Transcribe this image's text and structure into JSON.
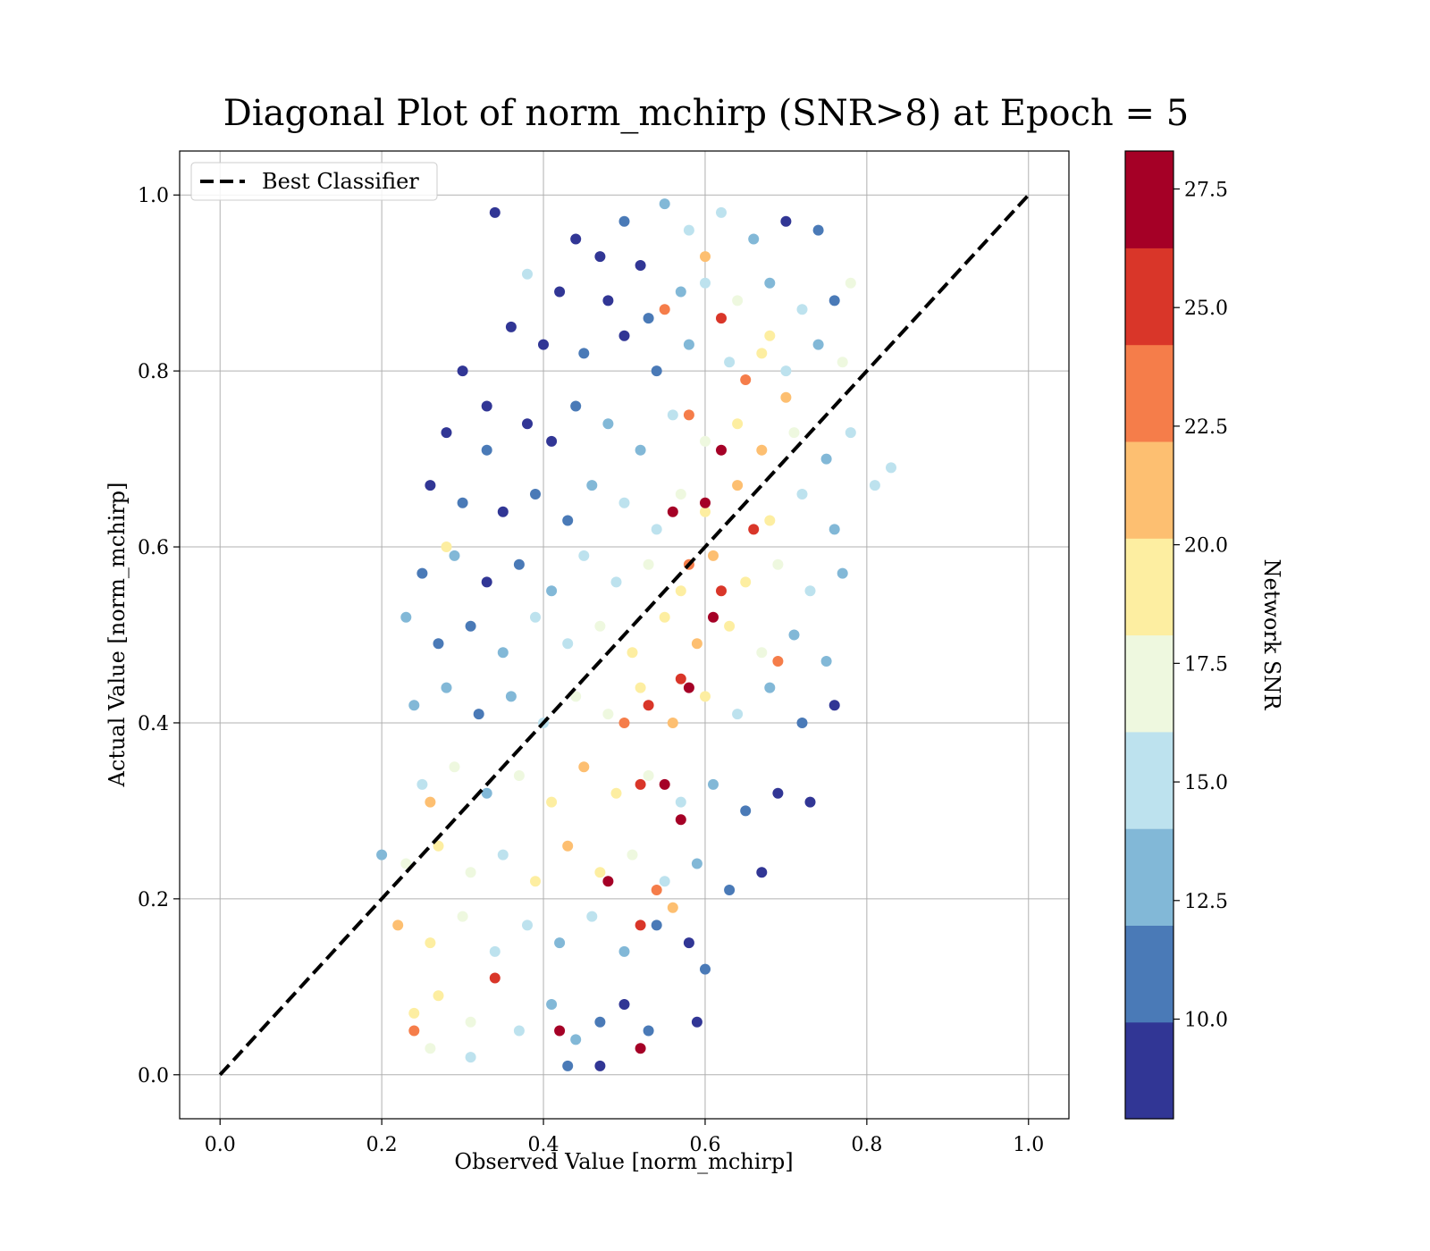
{
  "chart_data": {
    "type": "scatter",
    "title": "Diagonal Plot of norm_mchirp (SNR>8) at Epoch = 5",
    "xlabel": "Observed Value [norm_mchirp]",
    "ylabel": "Actual Value [norm_mchirp]",
    "xlim": [
      -0.05,
      1.05
    ],
    "ylim": [
      -0.05,
      1.05
    ],
    "xticks": [
      "0.0",
      "0.2",
      "0.4",
      "0.6",
      "0.8",
      "1.0"
    ],
    "yticks": [
      "0.0",
      "0.2",
      "0.4",
      "0.6",
      "0.8",
      "1.0"
    ],
    "grid": true,
    "legend": {
      "placement": "upper-left",
      "entries": [
        "Best Classifier"
      ]
    },
    "reference_line": {
      "name": "Best Classifier",
      "style": "dashed",
      "color": "#000000",
      "x": [
        0.0,
        1.0
      ],
      "y": [
        0.0,
        1.0
      ]
    },
    "colorbar": {
      "label": "Network SNR",
      "colormap": "RdYlBu_r",
      "range": [
        7.9,
        28.3
      ],
      "ticks": [
        "10.0",
        "12.5",
        "15.0",
        "17.5",
        "20.0",
        "22.5",
        "25.0",
        "27.5"
      ],
      "bins": [
        {
          "from": 7.9,
          "to": 9.94,
          "color": "#313695"
        },
        {
          "from": 9.94,
          "to": 11.98,
          "color": "#4a7ab7"
        },
        {
          "from": 11.98,
          "to": 14.02,
          "color": "#82b8d7"
        },
        {
          "from": 14.02,
          "to": 16.06,
          "color": "#bde2ee"
        },
        {
          "from": 16.06,
          "to": 18.1,
          "color": "#eef8df"
        },
        {
          "from": 18.1,
          "to": 20.14,
          "color": "#fdeea1"
        },
        {
          "from": 20.14,
          "to": 22.18,
          "color": "#fdbf71"
        },
        {
          "from": 22.18,
          "to": 24.22,
          "color": "#f57d4a"
        },
        {
          "from": 24.22,
          "to": 26.26,
          "color": "#d93629"
        },
        {
          "from": 26.26,
          "to": 28.3,
          "color": "#a50026"
        }
      ]
    },
    "series": [
      {
        "columns": [
          "x",
          "y",
          "snr"
        ],
        "points": [
          [
            0.34,
            0.98,
            9.2
          ],
          [
            0.44,
            0.95,
            9.0
          ],
          [
            0.47,
            0.93,
            9.8
          ],
          [
            0.5,
            0.97,
            10.5
          ],
          [
            0.52,
            0.92,
            9.4
          ],
          [
            0.55,
            0.99,
            12.8
          ],
          [
            0.58,
            0.96,
            14.6
          ],
          [
            0.62,
            0.98,
            15.9
          ],
          [
            0.66,
            0.95,
            13.1
          ],
          [
            0.7,
            0.97,
            9.7
          ],
          [
            0.74,
            0.96,
            11.8
          ],
          [
            0.38,
            0.91,
            15.6
          ],
          [
            0.42,
            0.89,
            9.1
          ],
          [
            0.48,
            0.88,
            9.3
          ],
          [
            0.53,
            0.86,
            10.2
          ],
          [
            0.57,
            0.89,
            12.4
          ],
          [
            0.6,
            0.9,
            14.8
          ],
          [
            0.64,
            0.88,
            16.1
          ],
          [
            0.68,
            0.9,
            13.5
          ],
          [
            0.72,
            0.87,
            15.2
          ],
          [
            0.76,
            0.88,
            11.5
          ],
          [
            0.78,
            0.9,
            16.4
          ],
          [
            0.62,
            0.86,
            25.3
          ],
          [
            0.55,
            0.87,
            23.0
          ],
          [
            0.6,
            0.93,
            20.8
          ],
          [
            0.36,
            0.85,
            9.0
          ],
          [
            0.4,
            0.83,
            9.4
          ],
          [
            0.45,
            0.82,
            10.1
          ],
          [
            0.5,
            0.84,
            9.6
          ],
          [
            0.54,
            0.8,
            11.2
          ],
          [
            0.58,
            0.83,
            13.3
          ],
          [
            0.63,
            0.81,
            15.4
          ],
          [
            0.67,
            0.82,
            19.6
          ],
          [
            0.7,
            0.8,
            14.9
          ],
          [
            0.74,
            0.83,
            12.7
          ],
          [
            0.77,
            0.81,
            16.8
          ],
          [
            0.3,
            0.8,
            9.5
          ],
          [
            0.33,
            0.76,
            9.8
          ],
          [
            0.65,
            0.79,
            23.4
          ],
          [
            0.68,
            0.84,
            18.7
          ],
          [
            0.28,
            0.73,
            9.3
          ],
          [
            0.33,
            0.71,
            10.4
          ],
          [
            0.38,
            0.74,
            9.1
          ],
          [
            0.41,
            0.72,
            9.7
          ],
          [
            0.44,
            0.76,
            10.8
          ],
          [
            0.48,
            0.74,
            12.2
          ],
          [
            0.52,
            0.71,
            13.9
          ],
          [
            0.56,
            0.75,
            15.1
          ],
          [
            0.6,
            0.72,
            17.3
          ],
          [
            0.64,
            0.74,
            19.2
          ],
          [
            0.67,
            0.71,
            20.5
          ],
          [
            0.71,
            0.73,
            16.2
          ],
          [
            0.75,
            0.7,
            13.6
          ],
          [
            0.78,
            0.73,
            15.7
          ],
          [
            0.83,
            0.69,
            15.3
          ],
          [
            0.81,
            0.67,
            14.7
          ],
          [
            0.62,
            0.71,
            27.9
          ],
          [
            0.58,
            0.75,
            22.9
          ],
          [
            0.7,
            0.77,
            21.4
          ],
          [
            0.26,
            0.67,
            9.4
          ],
          [
            0.3,
            0.65,
            10.6
          ],
          [
            0.35,
            0.64,
            9.2
          ],
          [
            0.39,
            0.66,
            10.9
          ],
          [
            0.43,
            0.63,
            11.8
          ],
          [
            0.46,
            0.67,
            12.6
          ],
          [
            0.5,
            0.65,
            14.3
          ],
          [
            0.54,
            0.62,
            15.8
          ],
          [
            0.57,
            0.66,
            17.9
          ],
          [
            0.6,
            0.64,
            19.8
          ],
          [
            0.64,
            0.67,
            21.0
          ],
          [
            0.68,
            0.63,
            18.4
          ],
          [
            0.72,
            0.66,
            15.5
          ],
          [
            0.76,
            0.62,
            12.9
          ],
          [
            0.56,
            0.64,
            27.2
          ],
          [
            0.6,
            0.65,
            26.9
          ],
          [
            0.66,
            0.62,
            24.6
          ],
          [
            0.25,
            0.57,
            10.3
          ],
          [
            0.29,
            0.59,
            12.1
          ],
          [
            0.33,
            0.56,
            9.6
          ],
          [
            0.37,
            0.58,
            11.4
          ],
          [
            0.41,
            0.55,
            13.2
          ],
          [
            0.45,
            0.59,
            14.5
          ],
          [
            0.49,
            0.56,
            15.9
          ],
          [
            0.53,
            0.58,
            17.1
          ],
          [
            0.57,
            0.55,
            18.9
          ],
          [
            0.61,
            0.59,
            20.3
          ],
          [
            0.65,
            0.56,
            19.5
          ],
          [
            0.69,
            0.58,
            17.6
          ],
          [
            0.73,
            0.55,
            14.2
          ],
          [
            0.77,
            0.57,
            12.3
          ],
          [
            0.62,
            0.55,
            25.1
          ],
          [
            0.58,
            0.58,
            23.2
          ],
          [
            0.28,
            0.6,
            19.0
          ],
          [
            0.23,
            0.52,
            13.0
          ],
          [
            0.27,
            0.49,
            11.6
          ],
          [
            0.31,
            0.51,
            10.2
          ],
          [
            0.35,
            0.48,
            12.8
          ],
          [
            0.39,
            0.52,
            14.1
          ],
          [
            0.43,
            0.49,
            15.7
          ],
          [
            0.47,
            0.51,
            16.9
          ],
          [
            0.51,
            0.48,
            18.6
          ],
          [
            0.55,
            0.52,
            20.1
          ],
          [
            0.59,
            0.49,
            21.3
          ],
          [
            0.63,
            0.51,
            19.4
          ],
          [
            0.67,
            0.48,
            16.7
          ],
          [
            0.71,
            0.5,
            14.0
          ],
          [
            0.75,
            0.47,
            12.1
          ],
          [
            0.61,
            0.52,
            26.8
          ],
          [
            0.57,
            0.45,
            25.4
          ],
          [
            0.69,
            0.47,
            22.6
          ],
          [
            0.24,
            0.42,
            13.7
          ],
          [
            0.28,
            0.44,
            12.5
          ],
          [
            0.32,
            0.41,
            11.1
          ],
          [
            0.36,
            0.43,
            13.8
          ],
          [
            0.4,
            0.4,
            15.2
          ],
          [
            0.44,
            0.43,
            16.6
          ],
          [
            0.48,
            0.41,
            18.0
          ],
          [
            0.52,
            0.44,
            19.7
          ],
          [
            0.56,
            0.4,
            20.9
          ],
          [
            0.6,
            0.43,
            18.2
          ],
          [
            0.64,
            0.41,
            15.6
          ],
          [
            0.68,
            0.44,
            13.3
          ],
          [
            0.72,
            0.4,
            11.0
          ],
          [
            0.76,
            0.42,
            9.5
          ],
          [
            0.53,
            0.42,
            25.2
          ],
          [
            0.58,
            0.44,
            27.3
          ],
          [
            0.5,
            0.4,
            22.4
          ],
          [
            0.25,
            0.33,
            15.4
          ],
          [
            0.29,
            0.35,
            16.7
          ],
          [
            0.33,
            0.32,
            14.0
          ],
          [
            0.37,
            0.34,
            17.5
          ],
          [
            0.41,
            0.31,
            19.1
          ],
          [
            0.45,
            0.35,
            20.2
          ],
          [
            0.49,
            0.32,
            18.3
          ],
          [
            0.53,
            0.34,
            16.4
          ],
          [
            0.57,
            0.31,
            14.6
          ],
          [
            0.61,
            0.33,
            12.0
          ],
          [
            0.65,
            0.3,
            10.7
          ],
          [
            0.69,
            0.32,
            9.6
          ],
          [
            0.73,
            0.31,
            9.2
          ],
          [
            0.26,
            0.31,
            21.8
          ],
          [
            0.55,
            0.33,
            26.7
          ],
          [
            0.57,
            0.29,
            27.4
          ],
          [
            0.52,
            0.33,
            25.0
          ],
          [
            0.23,
            0.24,
            16.3
          ],
          [
            0.27,
            0.26,
            19.4
          ],
          [
            0.31,
            0.23,
            17.0
          ],
          [
            0.35,
            0.25,
            15.1
          ],
          [
            0.39,
            0.22,
            18.8
          ],
          [
            0.43,
            0.26,
            20.4
          ],
          [
            0.47,
            0.23,
            19.0
          ],
          [
            0.51,
            0.25,
            16.6
          ],
          [
            0.55,
            0.22,
            14.3
          ],
          [
            0.59,
            0.24,
            12.3
          ],
          [
            0.63,
            0.21,
            10.5
          ],
          [
            0.67,
            0.23,
            9.4
          ],
          [
            0.2,
            0.25,
            12.6
          ],
          [
            0.48,
            0.22,
            27.6
          ],
          [
            0.54,
            0.21,
            23.8
          ],
          [
            0.22,
            0.17,
            21.2
          ],
          [
            0.26,
            0.15,
            19.3
          ],
          [
            0.3,
            0.18,
            17.7
          ],
          [
            0.34,
            0.14,
            16.0
          ],
          [
            0.38,
            0.17,
            14.4
          ],
          [
            0.42,
            0.15,
            13.0
          ],
          [
            0.46,
            0.18,
            15.0
          ],
          [
            0.5,
            0.14,
            12.7
          ],
          [
            0.54,
            0.17,
            10.8
          ],
          [
            0.58,
            0.15,
            9.6
          ],
          [
            0.6,
            0.12,
            11.2
          ],
          [
            0.56,
            0.19,
            22.0
          ],
          [
            0.52,
            0.17,
            25.5
          ],
          [
            0.24,
            0.07,
            19.7
          ],
          [
            0.27,
            0.09,
            18.4
          ],
          [
            0.31,
            0.06,
            16.1
          ],
          [
            0.34,
            0.11,
            24.8
          ],
          [
            0.37,
            0.05,
            14.7
          ],
          [
            0.41,
            0.08,
            13.4
          ],
          [
            0.44,
            0.04,
            12.2
          ],
          [
            0.47,
            0.06,
            11.0
          ],
          [
            0.5,
            0.08,
            9.9
          ],
          [
            0.53,
            0.05,
            10.4
          ],
          [
            0.42,
            0.05,
            27.7
          ],
          [
            0.52,
            0.03,
            27.1
          ],
          [
            0.26,
            0.03,
            17.8
          ],
          [
            0.24,
            0.05,
            23.5
          ],
          [
            0.43,
            0.01,
            11.7
          ],
          [
            0.47,
            0.01,
            9.5
          ],
          [
            0.31,
            0.02,
            15.0
          ],
          [
            0.59,
            0.06,
            9.3
          ]
        ]
      }
    ]
  }
}
